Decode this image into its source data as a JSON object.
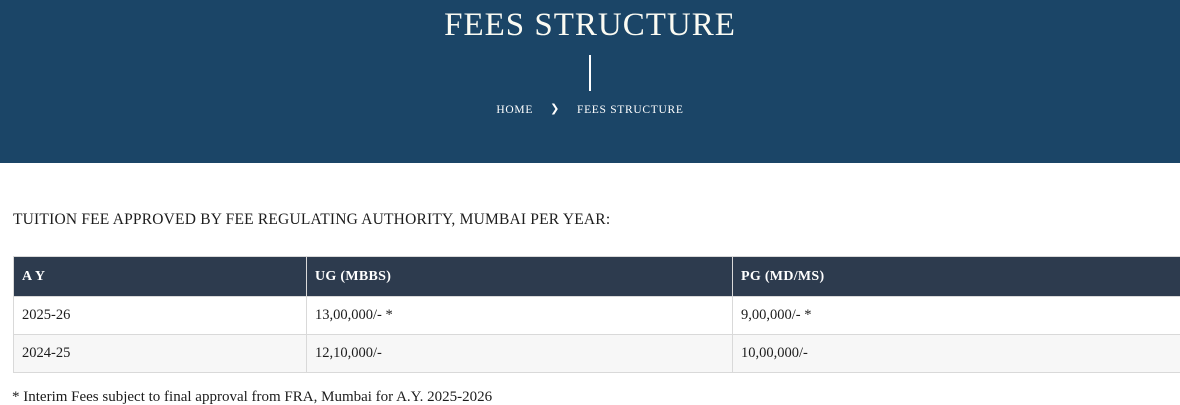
{
  "hero": {
    "title": "FEES STRUCTURE",
    "breadcrumb": {
      "home_label": "HOME",
      "separator": "❯",
      "current_label": "FEES STRUCTURE"
    }
  },
  "main": {
    "heading": "TUITION FEE APPROVED BY FEE REGULATING AUTHORITY, MUMBAI PER YEAR:",
    "table": {
      "columns": [
        "A Y",
        "UG (MBBS)",
        "PG (MD/MS)"
      ],
      "rows": [
        [
          "2025-26",
          "13,00,000/- *",
          "9,00,000/- *"
        ],
        [
          "2024-25",
          "12,10,000/-",
          "10,00,000/-"
        ]
      ]
    },
    "note": "* Interim Fees subject to final approval from FRA, Mumbai for A.Y. 2025-2026"
  },
  "colors": {
    "banner_background": "#1b4567",
    "table_header_background": "#2d3b4e",
    "alt_row_background": "#f7f7f7",
    "border": "#d9d9d9",
    "text": "#1c1c1c",
    "banner_text": "#ffffff"
  }
}
